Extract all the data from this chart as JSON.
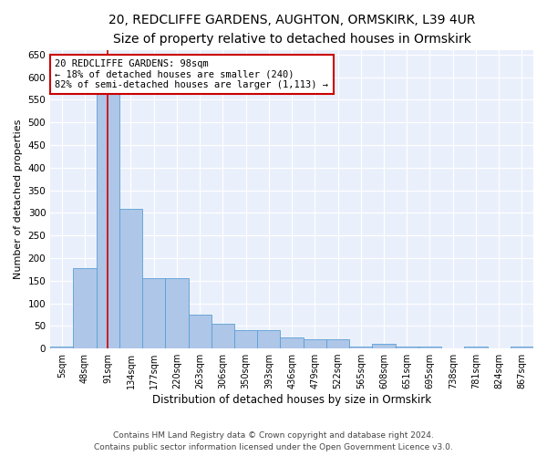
{
  "title1": "20, REDCLIFFE GARDENS, AUGHTON, ORMSKIRK, L39 4UR",
  "title2": "Size of property relative to detached houses in Ormskirk",
  "xlabel": "Distribution of detached houses by size in Ormskirk",
  "ylabel": "Number of detached properties",
  "categories": [
    "5sqm",
    "48sqm",
    "91sqm",
    "134sqm",
    "177sqm",
    "220sqm",
    "263sqm",
    "306sqm",
    "350sqm",
    "393sqm",
    "436sqm",
    "479sqm",
    "522sqm",
    "565sqm",
    "608sqm",
    "651sqm",
    "695sqm",
    "738sqm",
    "781sqm",
    "824sqm",
    "867sqm"
  ],
  "values": [
    5,
    178,
    630,
    308,
    155,
    155,
    75,
    55,
    40,
    40,
    25,
    20,
    20,
    5,
    10,
    5,
    5,
    0,
    5,
    0,
    5
  ],
  "bar_color": "#aec6e8",
  "bar_edge_color": "#5a9fd4",
  "vline_x": 2,
  "vline_color": "#cc0000",
  "annotation_text": "20 REDCLIFFE GARDENS: 98sqm\n← 18% of detached houses are smaller (240)\n82% of semi-detached houses are larger (1,113) →",
  "annotation_box_color": "white",
  "annotation_box_edge": "#cc0000",
  "ylim": [
    0,
    660
  ],
  "yticks": [
    0,
    50,
    100,
    150,
    200,
    250,
    300,
    350,
    400,
    450,
    500,
    550,
    600,
    650
  ],
  "footer1": "Contains HM Land Registry data © Crown copyright and database right 2024.",
  "footer2": "Contains public sector information licensed under the Open Government Licence v3.0.",
  "bg_color": "#eaf0fb",
  "title1_fontsize": 10,
  "title2_fontsize": 9,
  "annot_fontsize": 7.5,
  "xlabel_fontsize": 8.5,
  "ylabel_fontsize": 8,
  "tick_fontsize": 7,
  "ytick_fontsize": 7.5,
  "footer_fontsize": 6.5
}
